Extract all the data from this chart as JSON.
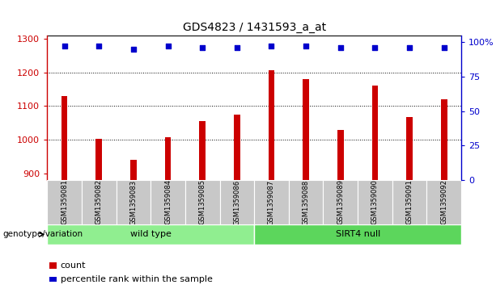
{
  "title": "GDS4823 / 1431593_a_at",
  "categories": [
    "GSM1359081",
    "GSM1359082",
    "GSM1359083",
    "GSM1359084",
    "GSM1359085",
    "GSM1359086",
    "GSM1359087",
    "GSM1359088",
    "GSM1359089",
    "GSM1359090",
    "GSM1359091",
    "GSM1359092"
  ],
  "bar_values": [
    1130,
    1002,
    940,
    1008,
    1055,
    1075,
    1205,
    1180,
    1028,
    1160,
    1068,
    1120
  ],
  "percentile_values": [
    97,
    97,
    95,
    97,
    96,
    96,
    97,
    97,
    96,
    96,
    96,
    96
  ],
  "bar_color": "#cc0000",
  "percentile_color": "#0000cc",
  "ylim_left": [
    880,
    1310
  ],
  "ylim_right": [
    0,
    105
  ],
  "yticks_left": [
    900,
    1000,
    1100,
    1200,
    1300
  ],
  "yticks_right": [
    0,
    25,
    50,
    75,
    100
  ],
  "yticklabels_right": [
    "0",
    "25",
    "50",
    "75",
    "100%"
  ],
  "grid_values": [
    1000,
    1100,
    1200
  ],
  "groups": [
    {
      "label": "wild type",
      "start": 0,
      "end": 6,
      "color": "#90ee90"
    },
    {
      "label": "SIRT4 null",
      "start": 6,
      "end": 12,
      "color": "#5cd65c"
    }
  ],
  "group_label_prefix": "genotype/variation",
  "tick_bg_color": "#c8c8c8",
  "legend_count_label": "count",
  "legend_percentile_label": "percentile rank within the sample",
  "bar_width": 0.18,
  "title_fontsize": 10,
  "axis_label_fontsize": 8,
  "cat_fontsize": 6,
  "group_fontsize": 8,
  "legend_fontsize": 8
}
